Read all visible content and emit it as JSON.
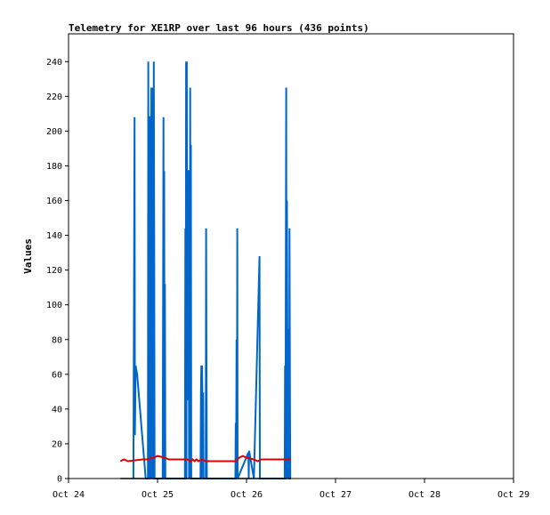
{
  "chart_data": {
    "type": "line",
    "title": "Telemetry for XE1RP over last 96 hours (436 points)",
    "xlabel": "",
    "ylabel": "Values",
    "x_ticks": [
      "Oct 24",
      "Oct 25",
      "Oct 26",
      "Oct 27",
      "Oct 28",
      "Oct 29"
    ],
    "xlim": [
      0,
      120
    ],
    "ylim": [
      0,
      256
    ],
    "y_ticks": [
      0,
      20,
      40,
      60,
      80,
      100,
      120,
      140,
      160,
      180,
      200,
      220,
      240
    ],
    "grid": false,
    "legend": "none",
    "series": [
      {
        "color": "#0066cc",
        "points": [
          [
            17.5,
            0
          ],
          [
            17.8,
            208
          ],
          [
            17.9,
            25
          ],
          [
            18.1,
            65
          ],
          [
            18.5,
            60
          ],
          [
            20.8,
            0
          ],
          [
            21.4,
            0
          ],
          [
            21.5,
            240
          ],
          [
            21.7,
            0
          ],
          [
            21.8,
            208
          ],
          [
            22.0,
            208
          ],
          [
            22.1,
            0
          ],
          [
            22.3,
            225
          ],
          [
            22.4,
            0
          ],
          [
            22.5,
            97
          ],
          [
            22.6,
            0
          ],
          [
            22.7,
            120
          ],
          [
            22.8,
            225
          ],
          [
            22.9,
            0
          ],
          [
            23.0,
            240
          ],
          [
            23.1,
            128
          ],
          [
            23.2,
            0
          ],
          [
            25.4,
            0
          ],
          [
            25.5,
            112
          ],
          [
            25.6,
            208
          ],
          [
            25.7,
            0
          ],
          [
            25.8,
            177
          ],
          [
            25.9,
            0
          ],
          [
            26.0,
            112
          ],
          [
            26.1,
            0
          ],
          [
            31.4,
            0
          ],
          [
            31.5,
            144
          ],
          [
            31.6,
            0
          ],
          [
            31.7,
            240
          ],
          [
            31.8,
            0
          ],
          [
            31.9,
            240
          ],
          [
            32.0,
            45
          ],
          [
            32.2,
            177
          ],
          [
            32.4,
            177
          ],
          [
            32.5,
            0
          ],
          [
            32.6,
            89
          ],
          [
            32.7,
            0
          ],
          [
            32.8,
            225
          ],
          [
            32.9,
            0
          ],
          [
            33.0,
            192
          ],
          [
            33.1,
            0
          ],
          [
            33.2,
            0
          ],
          [
            35.6,
            0
          ],
          [
            35.7,
            49
          ],
          [
            35.8,
            65
          ],
          [
            35.9,
            0
          ],
          [
            36.0,
            65
          ],
          [
            36.1,
            49
          ],
          [
            36.3,
            49
          ],
          [
            36.4,
            0
          ],
          [
            37.0,
            0
          ],
          [
            37.1,
            144
          ],
          [
            37.2,
            65
          ],
          [
            37.3,
            0
          ],
          [
            37.5,
            0
          ],
          [
            45.0,
            0
          ],
          [
            45.1,
            32
          ],
          [
            45.2,
            0
          ],
          [
            45.3,
            80
          ],
          [
            45.4,
            0
          ],
          [
            45.5,
            144
          ],
          [
            45.6,
            0
          ],
          [
            48.5,
            15
          ],
          [
            48.6,
            0
          ],
          [
            48.7,
            16
          ],
          [
            50.0,
            0
          ],
          [
            51.5,
            128
          ],
          [
            51.6,
            0
          ],
          [
            58.3,
            0
          ],
          [
            58.4,
            65
          ],
          [
            58.5,
            0
          ],
          [
            58.6,
            128
          ],
          [
            58.7,
            225
          ],
          [
            58.8,
            0
          ],
          [
            58.9,
            160
          ],
          [
            59.0,
            97
          ],
          [
            59.1,
            0
          ],
          [
            59.2,
            65
          ],
          [
            59.3,
            25
          ],
          [
            59.4,
            86
          ],
          [
            59.5,
            0
          ],
          [
            59.6,
            144
          ],
          [
            59.7,
            48
          ],
          [
            59.8,
            0
          ],
          [
            60.0,
            0
          ]
        ]
      },
      {
        "color": "#dd0000",
        "points": [
          [
            14.0,
            10
          ],
          [
            15.0,
            11
          ],
          [
            16.0,
            10
          ],
          [
            20.0,
            11
          ],
          [
            21.0,
            11
          ],
          [
            23.0,
            12
          ],
          [
            24.0,
            13
          ],
          [
            26.0,
            12
          ],
          [
            27.0,
            11
          ],
          [
            32.0,
            11
          ],
          [
            33.0,
            10
          ],
          [
            33.5,
            11
          ],
          [
            34.0,
            10
          ],
          [
            34.5,
            11
          ],
          [
            35.0,
            10
          ],
          [
            36.0,
            11
          ],
          [
            37.0,
            10
          ],
          [
            45.0,
            10
          ],
          [
            45.5,
            11
          ],
          [
            46.0,
            12
          ],
          [
            47.0,
            13
          ],
          [
            48.0,
            12
          ],
          [
            50.0,
            11
          ],
          [
            51.0,
            10
          ],
          [
            52.0,
            11
          ],
          [
            56.0,
            11
          ],
          [
            58.0,
            11
          ],
          [
            60.0,
            11
          ]
        ]
      },
      {
        "color": "#000000",
        "points": [
          [
            14.0,
            0
          ],
          [
            60.0,
            0
          ]
        ]
      }
    ]
  }
}
